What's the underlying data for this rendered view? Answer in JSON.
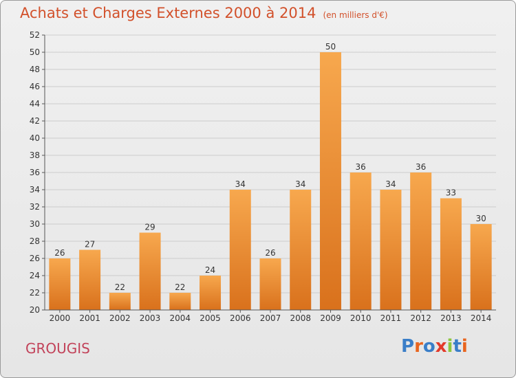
{
  "header": {
    "title": "Achats et Charges Externes 2000 à 2014",
    "subtitle": "(en milliers d'€)"
  },
  "footer": {
    "commune": "GROUGIS",
    "logo_text": "Proxiti",
    "logo_colors": [
      "#3a7ec8",
      "#e8651f",
      "#3a7ec8",
      "#e33a2a",
      "#8dc63f",
      "#3a7ec8",
      "#e8651f"
    ]
  },
  "colors": {
    "bar_top": "#f7a84e",
    "bar_bottom": "#d9711c",
    "grid": "#cccccc",
    "title": "#d2502a",
    "commune": "#c2435a"
  },
  "chart_data": {
    "type": "bar",
    "title": "Achats et Charges Externes 2000 à 2014",
    "subtitle": "(en milliers d'€)",
    "xlabel": "",
    "ylabel": "",
    "categories": [
      "2000",
      "2001",
      "2002",
      "2003",
      "2004",
      "2005",
      "2006",
      "2007",
      "2008",
      "2009",
      "2010",
      "2011",
      "2012",
      "2013",
      "2014"
    ],
    "values": [
      26,
      27,
      22,
      29,
      22,
      24,
      34,
      26,
      34,
      50,
      36,
      34,
      36,
      33,
      30
    ],
    "ylim": [
      20,
      52
    ],
    "yticks": [
      20,
      22,
      24,
      26,
      28,
      30,
      32,
      34,
      36,
      38,
      40,
      42,
      44,
      46,
      48,
      50,
      52
    ],
    "grid": true,
    "legend": "none"
  }
}
